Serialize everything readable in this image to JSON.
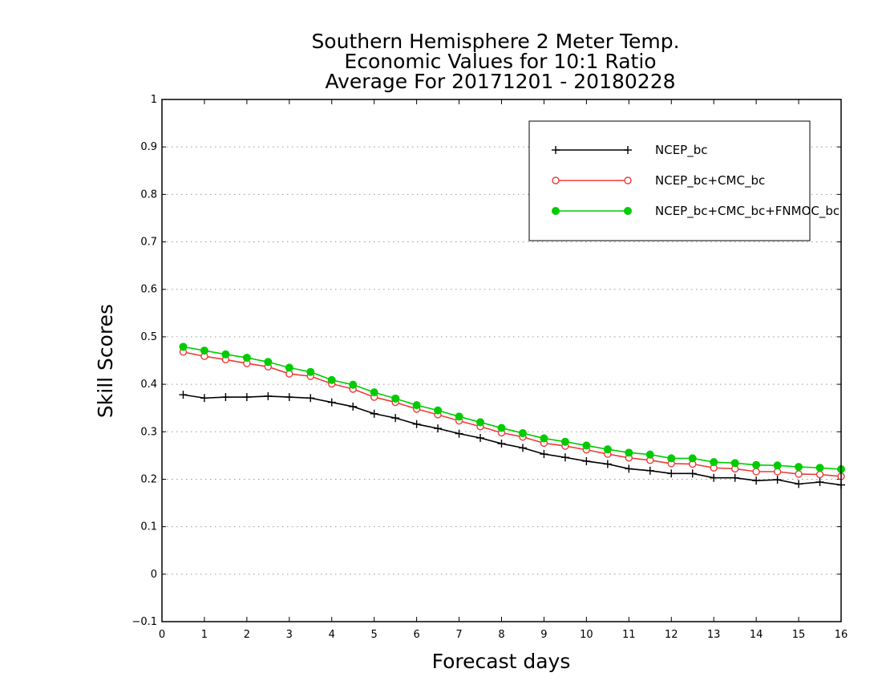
{
  "chart_data": {
    "type": "line",
    "title": [
      "Southern Hemisphere 2 Meter Temp.",
      "Economic Values for 10:1 Ratio",
      "Average For 20171201 - 20180228"
    ],
    "xlabel": "Forecast days",
    "ylabel": "Skill Scores",
    "xlim": [
      0,
      16
    ],
    "ylim": [
      -0.1,
      1
    ],
    "xticks": [
      "0",
      "1",
      "2",
      "3",
      "4",
      "5",
      "6",
      "7",
      "8",
      "9",
      "10",
      "11",
      "12",
      "13",
      "14",
      "15",
      "16"
    ],
    "yticks": [
      "−0.1",
      "0",
      "0.1",
      "0.2",
      "0.3",
      "0.4",
      "0.5",
      "0.6",
      "0.7",
      "0.8",
      "0.9",
      "1"
    ],
    "grid": "horizontal-dotted",
    "legend_position": "top-right",
    "x": [
      0.5,
      1,
      1.5,
      2,
      2.5,
      3,
      3.5,
      4,
      4.5,
      5,
      5.5,
      6,
      6.5,
      7,
      7.5,
      8,
      8.5,
      9,
      9.5,
      10,
      10.5,
      11,
      11.5,
      12,
      12.5,
      13,
      13.5,
      14,
      14.5,
      15,
      15.5,
      16
    ],
    "series": [
      {
        "name": "NCEP_bc",
        "color": "#000000",
        "marker": "plus",
        "values": [
          0.378,
          0.371,
          0.373,
          0.373,
          0.375,
          0.373,
          0.371,
          0.362,
          0.353,
          0.338,
          0.329,
          0.316,
          0.307,
          0.296,
          0.287,
          0.275,
          0.266,
          0.253,
          0.246,
          0.238,
          0.232,
          0.222,
          0.218,
          0.212,
          0.212,
          0.203,
          0.203,
          0.197,
          0.199,
          0.19,
          0.194,
          0.188
        ]
      },
      {
        "name": "NCEP_bc+CMC_bc",
        "color": "#ee3b3b",
        "marker": "open-circle",
        "values": [
          0.468,
          0.459,
          0.452,
          0.444,
          0.437,
          0.422,
          0.417,
          0.401,
          0.39,
          0.373,
          0.362,
          0.348,
          0.336,
          0.323,
          0.311,
          0.298,
          0.289,
          0.276,
          0.27,
          0.262,
          0.253,
          0.245,
          0.24,
          0.233,
          0.232,
          0.224,
          0.222,
          0.216,
          0.216,
          0.211,
          0.21,
          0.206
        ]
      },
      {
        "name": "NCEP_bc+CMC_bc+FNMOC_bc",
        "color": "#00cc00",
        "marker": "filled-circle",
        "values": [
          0.479,
          0.471,
          0.463,
          0.456,
          0.447,
          0.435,
          0.426,
          0.409,
          0.399,
          0.383,
          0.37,
          0.356,
          0.345,
          0.332,
          0.32,
          0.308,
          0.297,
          0.286,
          0.279,
          0.271,
          0.263,
          0.256,
          0.252,
          0.244,
          0.244,
          0.236,
          0.234,
          0.23,
          0.229,
          0.226,
          0.224,
          0.221
        ]
      }
    ]
  }
}
